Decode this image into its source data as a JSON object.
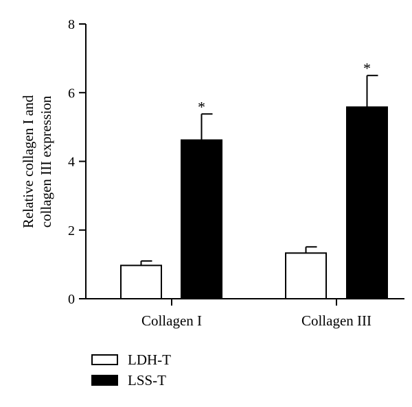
{
  "chart_data": {
    "type": "bar",
    "categories": [
      "Collagen I",
      "Collagen III"
    ],
    "series": [
      {
        "name": "LDH-T",
        "values": [
          0.97,
          1.33
        ],
        "errors": [
          0.13,
          0.18
        ],
        "fill": "#ffffff",
        "stroke": "#000000"
      },
      {
        "name": "LSS-T",
        "values": [
          4.62,
          5.58
        ],
        "errors": [
          0.76,
          0.92
        ],
        "fill": "#000000",
        "stroke": "#000000"
      }
    ],
    "ylabel_lines": [
      "Relative collagen I and",
      "collagen III expression"
    ],
    "ylim": [
      0,
      8
    ],
    "yticks": [
      "0",
      "2",
      "4",
      "6",
      "8"
    ],
    "significance": [
      {
        "category": "Collagen I",
        "series": "LSS-T",
        "label": "*"
      },
      {
        "category": "Collagen III",
        "series": "LSS-T",
        "label": "*"
      }
    ],
    "legend_position": "bottom-left",
    "grid": false
  }
}
